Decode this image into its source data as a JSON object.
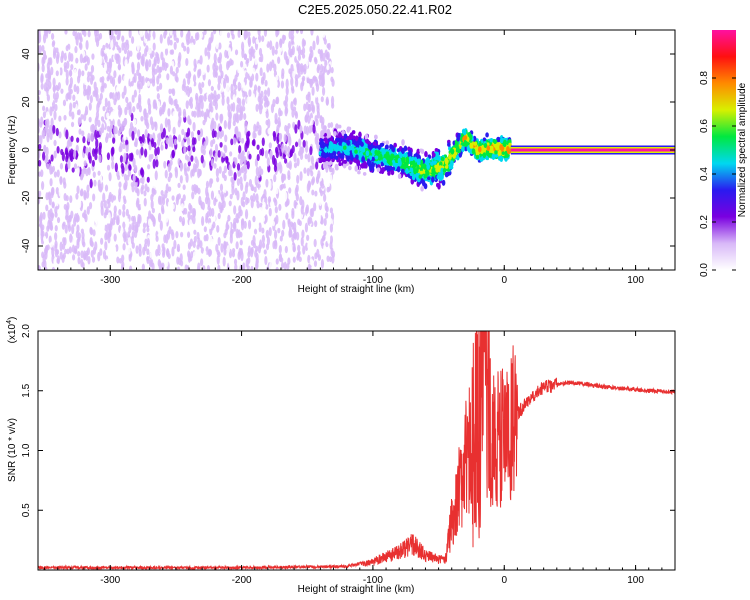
{
  "title": "C2E5.2025.050.22.41.R02",
  "chart_data": [
    {
      "type": "heatmap",
      "xlabel": "Height of straight line (km)",
      "ylabel": "Frequency (Hz)",
      "xlim": [
        -355,
        130
      ],
      "ylim": [
        -50,
        50
      ],
      "x_ticks": [
        -300,
        -200,
        -100,
        0,
        100
      ],
      "x_tick_labels": [
        "-300",
        "-200",
        "-100",
        "0",
        "100"
      ],
      "y_ticks": [
        -40,
        -20,
        0,
        20,
        40
      ],
      "y_tick_labels": [
        "-40",
        "-20",
        "0",
        "20",
        "40"
      ],
      "colorbar": {
        "label": "Normalized spectral amplitude",
        "range": [
          0,
          1
        ],
        "ticks": [
          0.0,
          0.2,
          0.4,
          0.6,
          0.8
        ],
        "tick_labels": [
          "0.0",
          "0.2",
          "0.4",
          "0.6",
          "0.8"
        ],
        "colors": [
          "#ffffff",
          "#d8b8f8",
          "#7a00e0",
          "#2a1af0",
          "#00d8f0",
          "#00e840",
          "#d8f000",
          "#ff8a00",
          "#ff1010",
          "#ff10a0"
        ]
      },
      "regions": [
        {
          "x_range": [
            -355,
            -140
          ],
          "frequency_spread": [
            -50,
            50
          ],
          "level": 0.15,
          "description": "diffuse noise"
        },
        {
          "x_range": [
            -140,
            5
          ],
          "centerline": [
            [
              -140,
              0
            ],
            [
              -120,
              1
            ],
            [
              -100,
              -2
            ],
            [
              -80,
              -4
            ],
            [
              -60,
              -9
            ],
            [
              -45,
              -6
            ],
            [
              -30,
              5
            ],
            [
              -20,
              0
            ],
            [
              -10,
              1
            ],
            [
              5,
              0
            ]
          ],
          "level": 0.45
        },
        {
          "x_range": [
            5,
            130
          ],
          "frequency": 0,
          "level": 0.95
        }
      ]
    },
    {
      "type": "line",
      "xlabel": "Height of straight line (km)",
      "ylabel": "SNR (10 * v/v)",
      "y_multiplier_label": "(x10",
      "y_multiplier_exp": "4",
      "xlim": [
        -355,
        130
      ],
      "ylim": [
        0,
        20000
      ],
      "x_ticks": [
        -300,
        -200,
        -100,
        0,
        100
      ],
      "x_tick_labels": [
        "-300",
        "-200",
        "-100",
        "0",
        "100"
      ],
      "y_ticks": [
        5000,
        10000,
        15000,
        20000
      ],
      "y_tick_labels": [
        "0.5",
        "1.0",
        "1.5",
        "2.0"
      ],
      "line_color": "#e83030",
      "envelope": [
        {
          "x": -355,
          "y": 200
        },
        {
          "x": -300,
          "y": 200
        },
        {
          "x": -200,
          "y": 200
        },
        {
          "x": -120,
          "y": 300
        },
        {
          "x": -100,
          "y": 700
        },
        {
          "x": -80,
          "y": 1500
        },
        {
          "x": -70,
          "y": 2200
        },
        {
          "x": -60,
          "y": 1200
        },
        {
          "x": -45,
          "y": 800
        },
        {
          "x": -40,
          "y": 4000
        },
        {
          "x": -30,
          "y": 9000
        },
        {
          "x": -20,
          "y": 12000
        },
        {
          "x": -15,
          "y": 15000
        },
        {
          "x": -10,
          "y": 11000
        },
        {
          "x": 0,
          "y": 11000
        },
        {
          "x": 10,
          "y": 13000
        },
        {
          "x": 20,
          "y": 14500
        },
        {
          "x": 30,
          "y": 15300
        },
        {
          "x": 50,
          "y": 15700
        },
        {
          "x": 80,
          "y": 15300
        },
        {
          "x": 110,
          "y": 15000
        },
        {
          "x": 130,
          "y": 14900
        }
      ]
    }
  ]
}
